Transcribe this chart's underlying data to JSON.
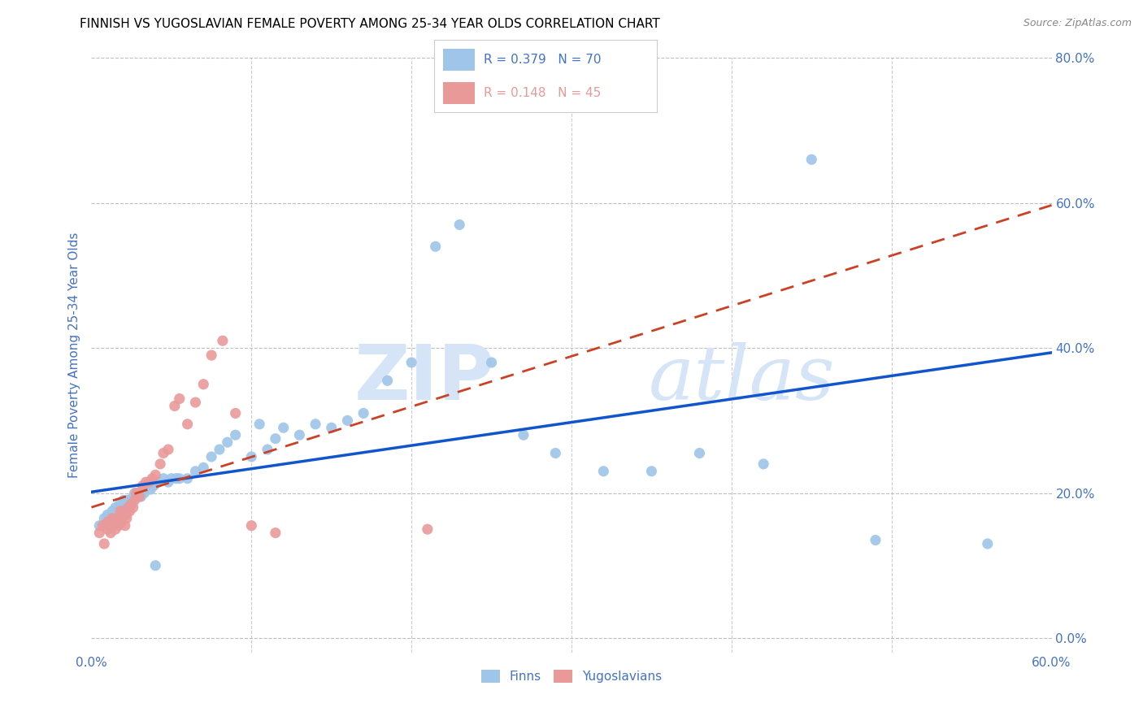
{
  "title": "FINNISH VS YUGOSLAVIAN FEMALE POVERTY AMONG 25-34 YEAR OLDS CORRELATION CHART",
  "source": "Source: ZipAtlas.com",
  "ylabel_label": "Female Poverty Among 25-34 Year Olds",
  "xlim": [
    0.0,
    0.6
  ],
  "ylim": [
    -0.02,
    0.8
  ],
  "legend_r_finns": "R = 0.379",
  "legend_n_finns": "N = 70",
  "legend_r_yugo": "R = 0.148",
  "legend_n_yugo": "N = 45",
  "finns_color": "#9fc5e8",
  "yugo_color": "#ea9999",
  "trendline_finns_color": "#1155cc",
  "trendline_yugo_color": "#cc4125",
  "background_color": "#ffffff",
  "grid_color": "#b7b7b7",
  "axis_color": "#4472c4",
  "title_color": "#000000",
  "watermark_zip": "ZIP",
  "watermark_atlas": "atlas",
  "watermark_color": "#d6e4f7",
  "finns_x": [
    0.005,
    0.008,
    0.01,
    0.01,
    0.012,
    0.013,
    0.015,
    0.015,
    0.015,
    0.017,
    0.018,
    0.018,
    0.019,
    0.02,
    0.02,
    0.02,
    0.021,
    0.022,
    0.022,
    0.023,
    0.024,
    0.025,
    0.026,
    0.027,
    0.028,
    0.03,
    0.031,
    0.032,
    0.033,
    0.035,
    0.037,
    0.039,
    0.04,
    0.042,
    0.045,
    0.048,
    0.05,
    0.053,
    0.055,
    0.06,
    0.065,
    0.07,
    0.075,
    0.08,
    0.085,
    0.09,
    0.1,
    0.105,
    0.11,
    0.115,
    0.12,
    0.13,
    0.14,
    0.15,
    0.16,
    0.17,
    0.185,
    0.2,
    0.215,
    0.23,
    0.25,
    0.27,
    0.29,
    0.32,
    0.35,
    0.38,
    0.42,
    0.45,
    0.49,
    0.56
  ],
  "finns_y": [
    0.155,
    0.165,
    0.16,
    0.17,
    0.155,
    0.175,
    0.16,
    0.17,
    0.18,
    0.165,
    0.175,
    0.185,
    0.165,
    0.175,
    0.185,
    0.19,
    0.175,
    0.18,
    0.19,
    0.185,
    0.19,
    0.185,
    0.195,
    0.2,
    0.195,
    0.2,
    0.195,
    0.205,
    0.2,
    0.21,
    0.205,
    0.21,
    0.1,
    0.215,
    0.22,
    0.215,
    0.22,
    0.22,
    0.22,
    0.22,
    0.23,
    0.235,
    0.25,
    0.26,
    0.27,
    0.28,
    0.25,
    0.295,
    0.26,
    0.275,
    0.29,
    0.28,
    0.295,
    0.29,
    0.3,
    0.31,
    0.355,
    0.38,
    0.54,
    0.57,
    0.38,
    0.28,
    0.255,
    0.23,
    0.23,
    0.255,
    0.24,
    0.66,
    0.135,
    0.13
  ],
  "yugo_x": [
    0.005,
    0.007,
    0.008,
    0.01,
    0.01,
    0.012,
    0.013,
    0.013,
    0.015,
    0.015,
    0.016,
    0.017,
    0.018,
    0.018,
    0.019,
    0.02,
    0.021,
    0.022,
    0.022,
    0.023,
    0.024,
    0.025,
    0.026,
    0.027,
    0.028,
    0.03,
    0.032,
    0.034,
    0.036,
    0.038,
    0.04,
    0.043,
    0.045,
    0.048,
    0.052,
    0.055,
    0.06,
    0.065,
    0.07,
    0.075,
    0.082,
    0.09,
    0.1,
    0.115,
    0.21
  ],
  "yugo_y": [
    0.145,
    0.155,
    0.13,
    0.15,
    0.16,
    0.145,
    0.155,
    0.165,
    0.15,
    0.16,
    0.165,
    0.155,
    0.17,
    0.175,
    0.16,
    0.175,
    0.155,
    0.165,
    0.17,
    0.18,
    0.175,
    0.185,
    0.18,
    0.19,
    0.2,
    0.195,
    0.21,
    0.215,
    0.215,
    0.22,
    0.225,
    0.24,
    0.255,
    0.26,
    0.32,
    0.33,
    0.295,
    0.325,
    0.35,
    0.39,
    0.41,
    0.31,
    0.155,
    0.145,
    0.15
  ]
}
